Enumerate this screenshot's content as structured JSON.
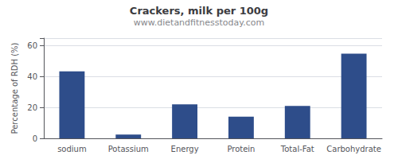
{
  "chart_data": {
    "type": "bar",
    "title": "Crackers, milk per 100g",
    "subtitle": "www.dietandfitnesstoday.com",
    "categories": [
      "sodium",
      "Potassium",
      "Energy",
      "Protein",
      "Total-Fat",
      "Carbohydrate"
    ],
    "values": [
      43.5,
      2.5,
      22.0,
      14.0,
      21.0,
      55.0
    ],
    "color": "#2e4d8a",
    "ylabel": "Percentage of RDH (%)",
    "ylim": [
      0,
      65
    ],
    "yticks": [
      0,
      20,
      40,
      60
    ],
    "grid": true
  }
}
